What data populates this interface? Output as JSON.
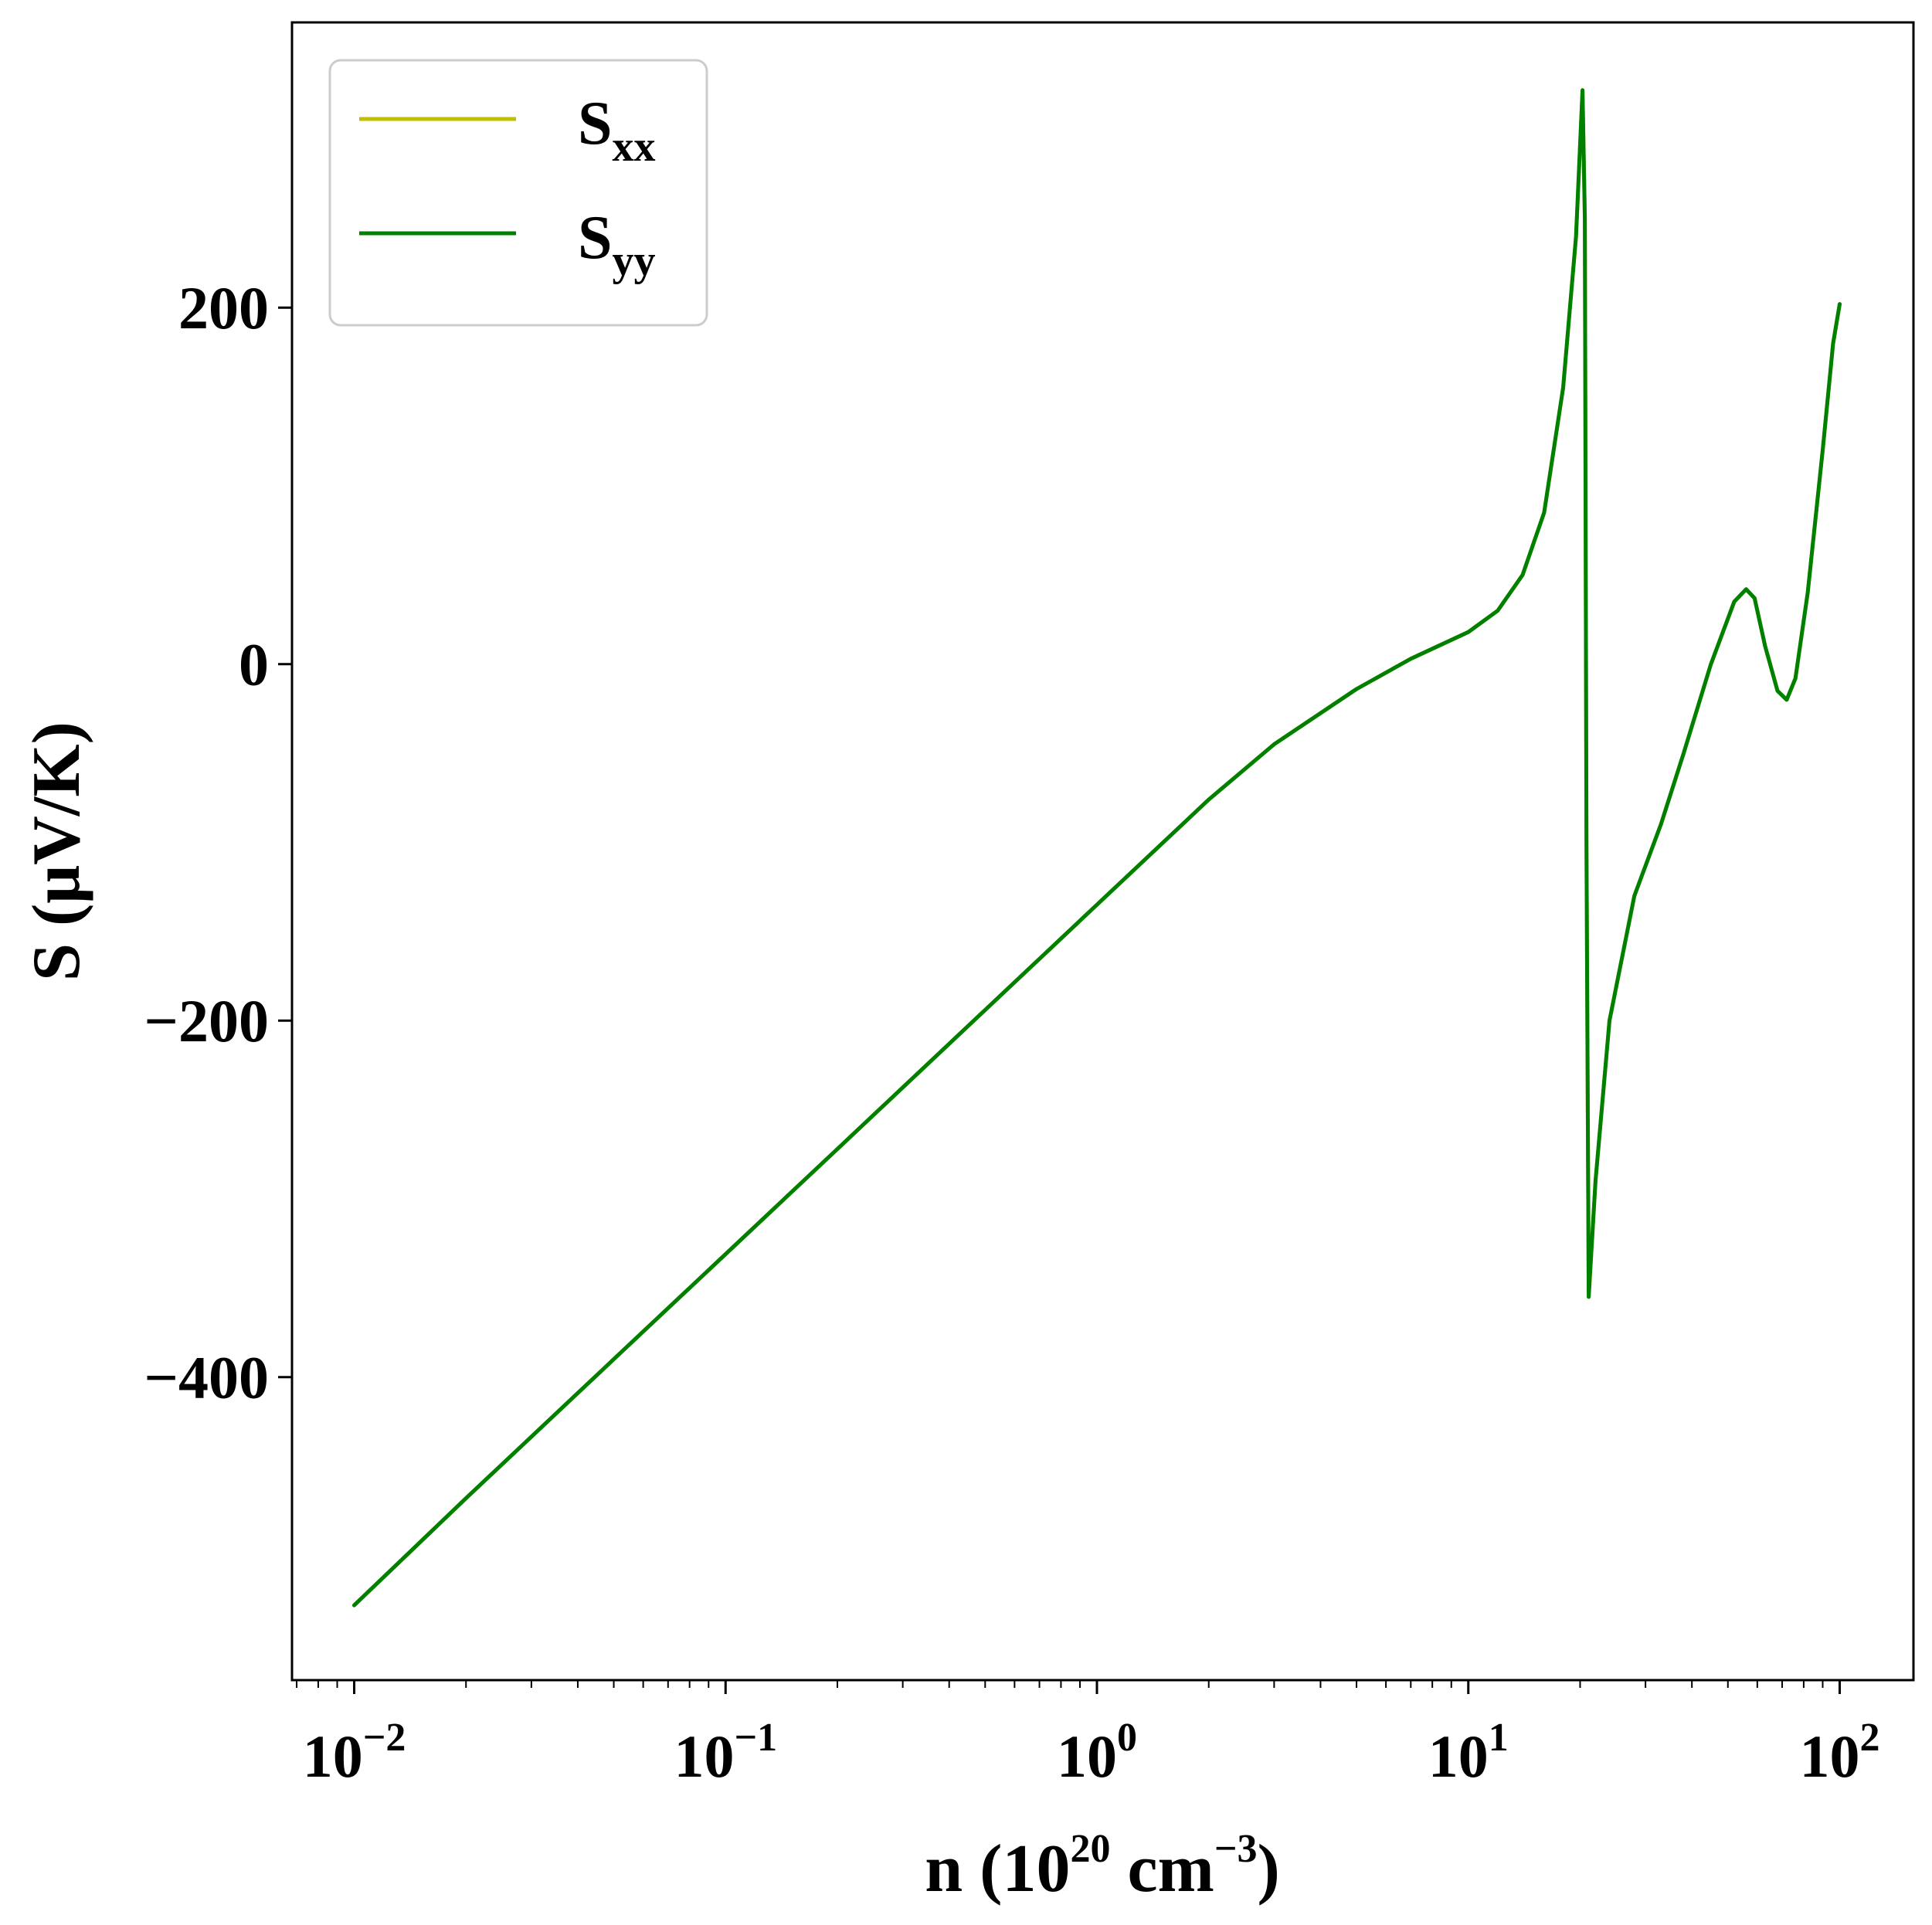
{
  "chart_data": {
    "type": "line",
    "title": "",
    "xlabel": {
      "base": "n (10",
      "exp1": "20",
      "mid": " cm",
      "exp2": "−3",
      "end": ")"
    },
    "ylabel": "S (μV/K)",
    "xscale": "log",
    "xlim": [
      0.0068,
      158
    ],
    "ylim": [
      -570,
      360
    ],
    "xticks": [
      {
        "value": 0.01,
        "base": "10",
        "exp": "−2"
      },
      {
        "value": 0.1,
        "base": "10",
        "exp": "−1"
      },
      {
        "value": 1,
        "base": "10",
        "exp": "0"
      },
      {
        "value": 10,
        "base": "10",
        "exp": "1"
      },
      {
        "value": 100,
        "base": "10",
        "exp": "2"
      }
    ],
    "yticks": [
      {
        "value": 200,
        "label": "200"
      },
      {
        "value": 0,
        "label": "0"
      },
      {
        "value": -200,
        "label": "−200"
      },
      {
        "value": -400,
        "label": "−400"
      }
    ],
    "grid": false,
    "legend_position": "top-left",
    "series": [
      {
        "name_main": "S",
        "name_sub": "xx",
        "color": "#bfbf00",
        "visible_line": false,
        "x": [
          0.01,
          0.02,
          0.05,
          0.1,
          0.2,
          0.5,
          1,
          2,
          3,
          5,
          7,
          10,
          12,
          14,
          16,
          18,
          19.5,
          20.3,
          20.6,
          20.8,
          21.1,
          22,
          24,
          28,
          33,
          38,
          45,
          52,
          56,
          59,
          63,
          68,
          72,
          76,
          82,
          90,
          96,
          100
        ],
        "y": [
          -528,
          -468,
          -390,
          -331,
          -272,
          -194,
          -135,
          -76,
          -45,
          -14,
          3,
          18,
          30,
          50,
          85,
          155,
          240,
          322,
          250,
          -100,
          -355,
          -290,
          -200,
          -130,
          -90,
          -50,
          0,
          35,
          42,
          37,
          10,
          -15,
          -20,
          -8,
          40,
          120,
          180,
          202
        ]
      },
      {
        "name_main": "S",
        "name_sub": "yy",
        "color": "#008000",
        "visible_line": true,
        "x": [
          0.01,
          0.02,
          0.05,
          0.1,
          0.2,
          0.5,
          1,
          2,
          3,
          5,
          7,
          10,
          12,
          14,
          16,
          18,
          19.5,
          20.3,
          20.6,
          20.8,
          21.1,
          22,
          24,
          28,
          33,
          38,
          45,
          52,
          56,
          59,
          63,
          68,
          72,
          76,
          82,
          90,
          96,
          100
        ],
        "y": [
          -528,
          -468,
          -390,
          -331,
          -272,
          -194,
          -135,
          -76,
          -45,
          -14,
          3,
          18,
          30,
          50,
          85,
          155,
          240,
          322,
          250,
          -100,
          -355,
          -290,
          -200,
          -130,
          -90,
          -50,
          0,
          35,
          42,
          37,
          10,
          -15,
          -20,
          -8,
          40,
          120,
          180,
          202
        ]
      }
    ]
  }
}
